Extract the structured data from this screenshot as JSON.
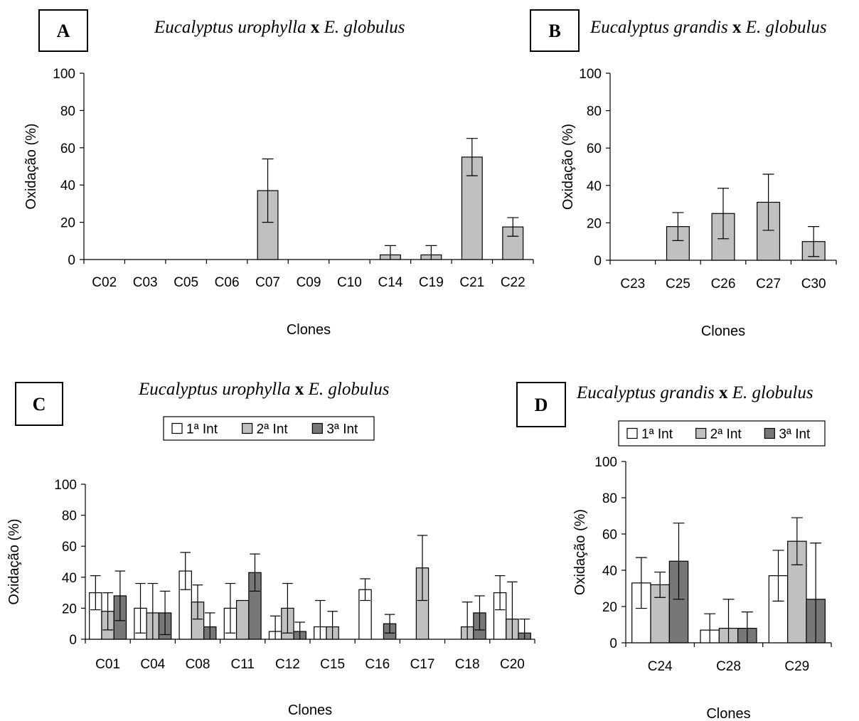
{
  "chart_data": [
    {
      "id": "A",
      "type": "bar",
      "panel_label": "A",
      "title_italic_1": "Eucalyptus urophylla",
      "title_x": "x",
      "title_italic_2": "E. globulus",
      "xlabel": "Clones",
      "ylabel": "Oxidação (%)",
      "ylim": [
        0,
        100
      ],
      "yticks": [
        0,
        20,
        40,
        60,
        80,
        100
      ],
      "categories": [
        "C02",
        "C03",
        "C05",
        "C06",
        "C07",
        "C09",
        "C10",
        "C14",
        "C19",
        "C21",
        "C22"
      ],
      "series": [
        {
          "values": [
            0,
            0,
            0,
            0,
            37,
            0,
            0,
            2.5,
            2.5,
            55,
            17.5
          ],
          "errors": [
            0,
            0,
            0,
            0,
            17,
            0,
            0,
            5,
            5,
            10,
            5
          ]
        }
      ],
      "colors": [
        "#c0c0c0"
      ]
    },
    {
      "id": "B",
      "type": "bar",
      "panel_label": "B",
      "title_italic_1": "Eucalyptus grandis",
      "title_x": "x",
      "title_italic_2": "E. globulus",
      "xlabel": "Clones",
      "ylabel": "Oxidação (%)",
      "ylim": [
        0,
        100
      ],
      "yticks": [
        0,
        20,
        40,
        60,
        80,
        100
      ],
      "categories": [
        "C23",
        "C25",
        "C26",
        "C27",
        "C30"
      ],
      "series": [
        {
          "values": [
            0,
            18,
            25,
            31,
            10
          ],
          "errors": [
            0,
            7.5,
            13.5,
            15,
            8
          ]
        }
      ],
      "colors": [
        "#c0c0c0"
      ]
    },
    {
      "id": "C",
      "type": "bar",
      "panel_label": "C",
      "title_italic_1": "Eucalyptus urophylla",
      "title_x": "x",
      "title_italic_2": "E. globulus",
      "xlabel": "Clones",
      "ylabel": "Oxidação (%)",
      "ylim": [
        0,
        100
      ],
      "yticks": [
        0,
        20,
        40,
        60,
        80,
        100
      ],
      "categories": [
        "C01",
        "C04",
        "C08",
        "C11",
        "C12",
        "C15",
        "C16",
        "C17",
        "C18",
        "C20"
      ],
      "series": [
        {
          "name": "1ª Int",
          "values": [
            30,
            20,
            44,
            20,
            5,
            8,
            32,
            0,
            0,
            30
          ],
          "errors": [
            11,
            16,
            12,
            16,
            10,
            17,
            7,
            0,
            0,
            11
          ]
        },
        {
          "name": "2ª Int",
          "values": [
            18,
            17,
            24,
            25,
            20,
            8,
            0,
            46,
            8,
            13
          ],
          "errors": [
            12,
            19,
            11,
            0,
            16,
            10,
            0,
            21,
            16,
            24
          ]
        },
        {
          "name": "3ª Int",
          "values": [
            28,
            17,
            8,
            43,
            5,
            0,
            10,
            0,
            17,
            4
          ],
          "errors": [
            16,
            14,
            9,
            12,
            6,
            0,
            6,
            0,
            11,
            9
          ]
        }
      ],
      "colors": [
        "#ffffff",
        "#c0c0c0",
        "#777777"
      ],
      "legend": "top"
    },
    {
      "id": "D",
      "type": "bar",
      "panel_label": "D",
      "title_italic_1": "Eucalyptus grandis",
      "title_x": "x",
      "title_italic_2": "E. globulus",
      "xlabel": "Clones",
      "ylabel": "Oxidação (%)",
      "ylim": [
        0,
        100
      ],
      "yticks": [
        0,
        20,
        40,
        60,
        80,
        100
      ],
      "categories": [
        "C24",
        "C28",
        "C29"
      ],
      "series": [
        {
          "name": "1ª Int",
          "values": [
            33,
            7,
            37
          ],
          "errors": [
            14,
            9,
            14
          ]
        },
        {
          "name": "2ª Int",
          "values": [
            32,
            8,
            56
          ],
          "errors": [
            7,
            16,
            13
          ]
        },
        {
          "name": "3ª Int",
          "values": [
            45,
            8,
            24
          ],
          "errors": [
            21,
            9,
            31
          ]
        }
      ],
      "colors": [
        "#ffffff",
        "#c0c0c0",
        "#777777"
      ],
      "legend": "top"
    }
  ]
}
